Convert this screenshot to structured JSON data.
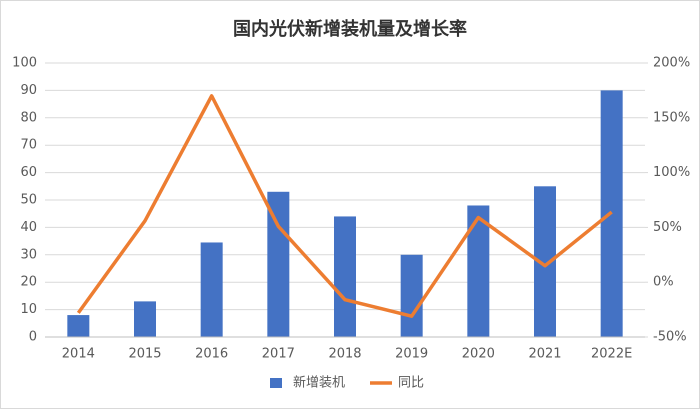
{
  "chart_data": {
    "type": "bar",
    "title": "国内光伏新增装机量及增长率",
    "categories": [
      "2014",
      "2015",
      "2016",
      "2017",
      "2018",
      "2019",
      "2020",
      "2021",
      "2022E"
    ],
    "series": [
      {
        "name": "新增装机",
        "type": "bar",
        "color": "#4472c4",
        "values": [
          8,
          13,
          34.5,
          53,
          44,
          30,
          48,
          55,
          90
        ]
      },
      {
        "name": "同比",
        "type": "line",
        "axis": "y2",
        "color": "#ed7d31",
        "values": [
          -28,
          56,
          170,
          51,
          -16,
          -31,
          59,
          15,
          64
        ]
      }
    ],
    "ylim": [
      0,
      100
    ],
    "yticks": [
      0,
      10,
      20,
      30,
      40,
      50,
      60,
      70,
      80,
      90,
      100
    ],
    "y2lim": [
      -50,
      200
    ],
    "y2ticks": [
      {
        "value": -50,
        "label": "-50%"
      },
      {
        "value": 0,
        "label": "0%"
      },
      {
        "value": 50,
        "label": "50%"
      },
      {
        "value": 100,
        "label": "100%"
      },
      {
        "value": 150,
        "label": "150%"
      },
      {
        "value": 200,
        "label": "200%"
      }
    ],
    "grid": true,
    "legend": "bottom"
  }
}
